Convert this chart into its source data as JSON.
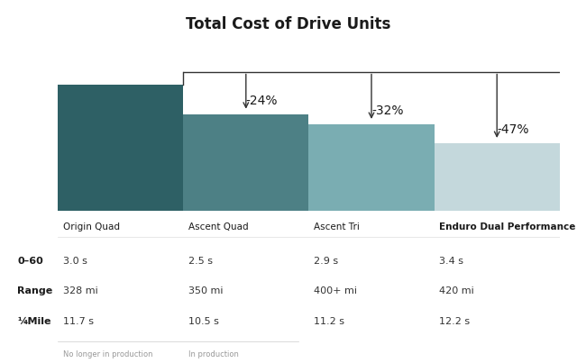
{
  "title": "Total Cost of Drive Units",
  "categories": [
    "Origin Quad",
    "Ascent Quad",
    "Ascent Tri",
    "Enduro Dual Performance"
  ],
  "values": [
    1.0,
    0.76,
    0.68,
    0.53
  ],
  "bar_colors": [
    "#2e6065",
    "#4d8085",
    "#7aadb2",
    "#c4d8dc"
  ],
  "pct_labels": [
    "-24%",
    "-32%",
    "-47%"
  ],
  "background_color": "#ffffff",
  "row_labels": [
    "0–60",
    "Range",
    "¼Mile"
  ],
  "table_data": [
    [
      "3.0 s",
      "2.5 s",
      "2.9 s",
      "3.4 s"
    ],
    [
      "328 mi",
      "350 mi",
      "400+ mi",
      "420 mi"
    ],
    [
      "11.7 s",
      "10.5 s",
      "11.2 s",
      "12.2 s"
    ]
  ],
  "footnotes": [
    "No longer in production",
    "In production"
  ]
}
